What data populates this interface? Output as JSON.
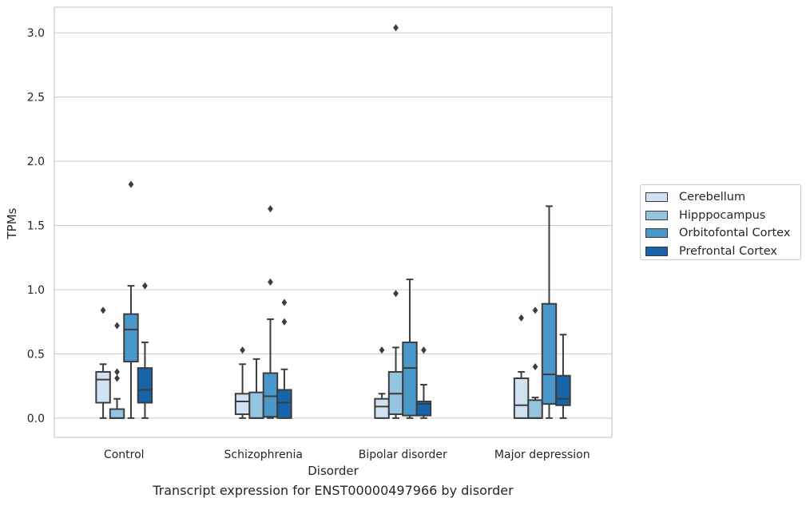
{
  "caption": "Transcript expression for ENST00000497966 by disorder",
  "chart_data": {
    "type": "box",
    "xlabel": "Disorder",
    "ylabel": "TPMs",
    "ylim": [
      -0.15,
      3.2
    ],
    "yticks": [
      "0.0",
      "0.5",
      "1.0",
      "1.5",
      "2.0",
      "2.5",
      "3.0"
    ],
    "categories": [
      "Control",
      "Schizophrenia",
      "Bipolar disorder",
      "Major depression"
    ],
    "grid": "horizontal",
    "legend_position": "right",
    "series": [
      {
        "name": "Cerebellum",
        "color": "#d0e1f2",
        "boxes": [
          {
            "whislo": 0.0,
            "q1": 0.12,
            "med": 0.3,
            "q3": 0.36,
            "whishi": 0.42,
            "fliers": [
              0.84
            ]
          },
          {
            "whislo": 0.0,
            "q1": 0.03,
            "med": 0.13,
            "q3": 0.19,
            "whishi": 0.42,
            "fliers": [
              0.53
            ]
          },
          {
            "whislo": 0.0,
            "q1": 0.0,
            "med": 0.09,
            "q3": 0.15,
            "whishi": 0.19,
            "fliers": [
              0.53
            ]
          },
          {
            "whislo": 0.0,
            "q1": 0.0,
            "med": 0.1,
            "q3": 0.31,
            "whishi": 0.36,
            "fliers": [
              0.78
            ]
          }
        ]
      },
      {
        "name": "Hipppocampus",
        "color": "#94c4df",
        "boxes": [
          {
            "whislo": 0.0,
            "q1": 0.0,
            "med": 0.0,
            "q3": 0.07,
            "whishi": 0.15,
            "fliers": [
              0.31,
              0.36,
              0.72
            ]
          },
          {
            "whislo": 0.0,
            "q1": 0.0,
            "med": 0.0,
            "q3": 0.2,
            "whishi": 0.46,
            "fliers": []
          },
          {
            "whislo": 0.0,
            "q1": 0.03,
            "med": 0.19,
            "q3": 0.36,
            "whishi": 0.55,
            "fliers": [
              0.97,
              3.04
            ]
          },
          {
            "whislo": 0.0,
            "q1": 0.0,
            "med": 0.0,
            "q3": 0.14,
            "whishi": 0.16,
            "fliers": [
              0.4,
              0.84
            ]
          }
        ]
      },
      {
        "name": "Orbitofontal Cortex",
        "color": "#4a98c9",
        "boxes": [
          {
            "whislo": 0.0,
            "q1": 0.44,
            "med": 0.69,
            "q3": 0.81,
            "whishi": 1.03,
            "fliers": [
              1.82
            ]
          },
          {
            "whislo": 0.0,
            "q1": 0.01,
            "med": 0.17,
            "q3": 0.35,
            "whishi": 0.77,
            "fliers": [
              1.06,
              1.63
            ]
          },
          {
            "whislo": 0.0,
            "q1": 0.02,
            "med": 0.39,
            "q3": 0.59,
            "whishi": 1.08,
            "fliers": []
          },
          {
            "whislo": 0.0,
            "q1": 0.11,
            "med": 0.34,
            "q3": 0.89,
            "whishi": 1.65,
            "fliers": []
          }
        ]
      },
      {
        "name": "Prefrontal Cortex",
        "color": "#1764ab",
        "boxes": [
          {
            "whislo": 0.0,
            "q1": 0.12,
            "med": 0.22,
            "q3": 0.39,
            "whishi": 0.59,
            "fliers": [
              1.03
            ]
          },
          {
            "whislo": 0.0,
            "q1": 0.0,
            "med": 0.12,
            "q3": 0.22,
            "whishi": 0.38,
            "fliers": [
              0.75,
              0.9
            ]
          },
          {
            "whislo": 0.0,
            "q1": 0.02,
            "med": 0.11,
            "q3": 0.13,
            "whishi": 0.26,
            "fliers": [
              0.53
            ]
          },
          {
            "whislo": 0.0,
            "q1": 0.1,
            "med": 0.15,
            "q3": 0.33,
            "whishi": 0.65,
            "fliers": []
          }
        ]
      }
    ]
  }
}
